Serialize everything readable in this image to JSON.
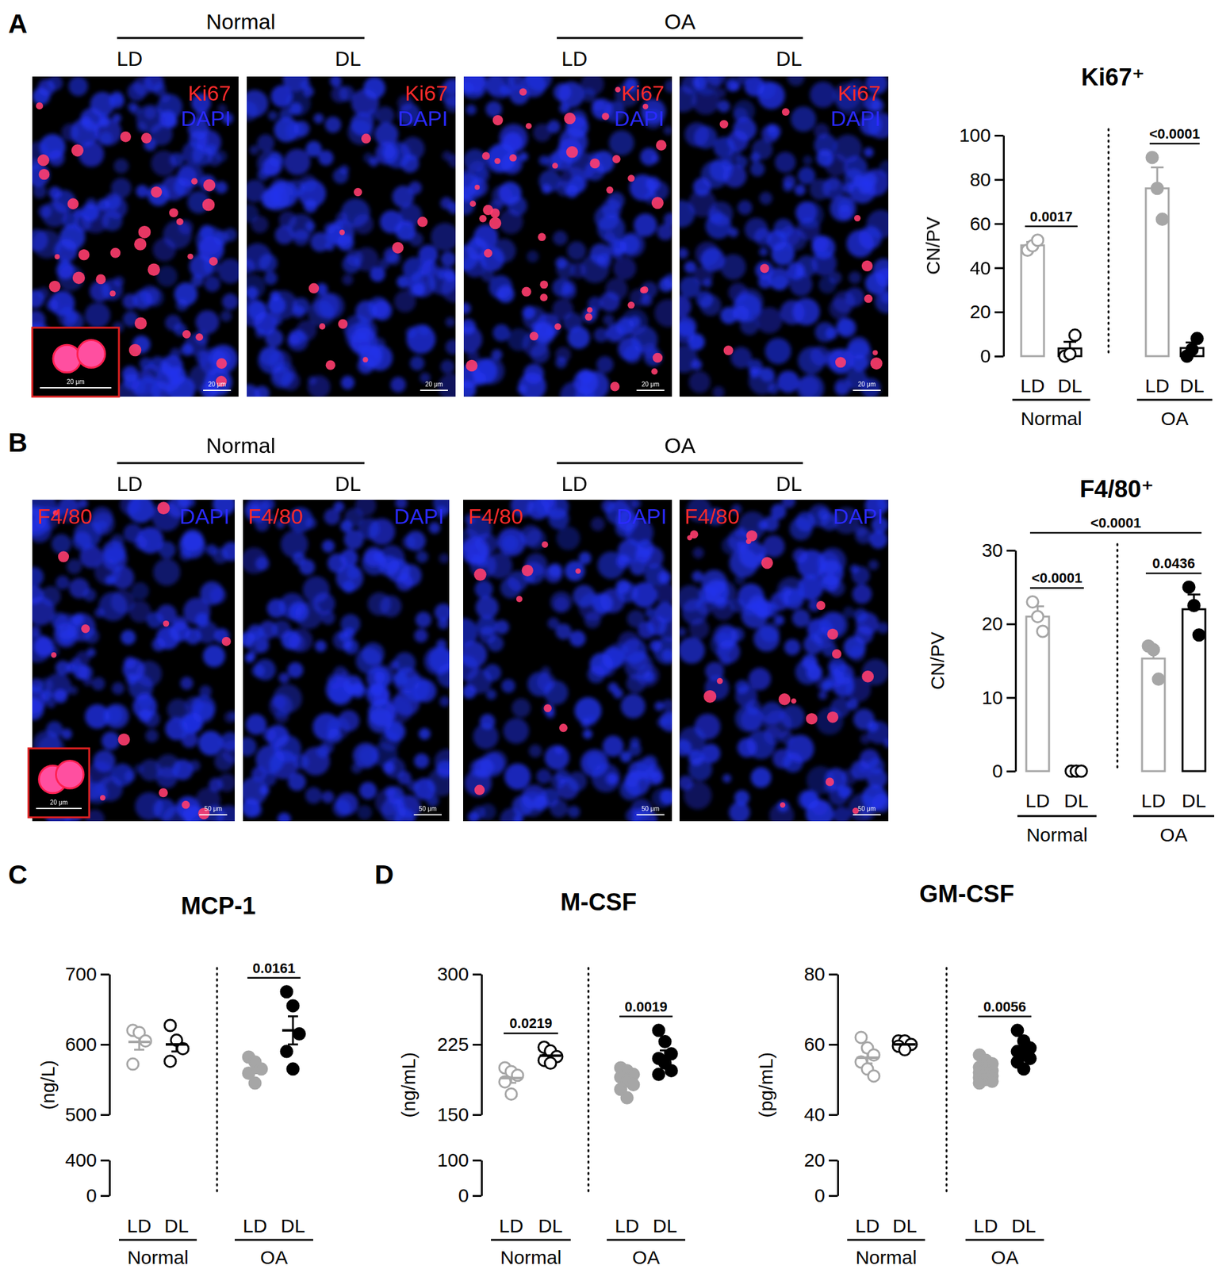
{
  "figure": {
    "panels": [
      {
        "letter": "A",
        "groups": [
          {
            "name": "Normal",
            "columns": [
              "LD",
              "DL"
            ]
          },
          {
            "name": "OA",
            "columns": [
              "LD",
              "DL"
            ]
          }
        ],
        "stain": "Ki67",
        "counterstain": "DAPI",
        "scale_bar": "20 μm",
        "inset_scale_bar": "20 μm"
      },
      {
        "letter": "B",
        "groups": [
          {
            "name": "Normal",
            "columns": [
              "LD",
              "DL"
            ]
          },
          {
            "name": "OA",
            "columns": [
              "LD",
              "DL"
            ]
          }
        ],
        "stain": "F4/80",
        "counterstain": "DAPI",
        "scale_bar": "50 μm",
        "inset_scale_bar": "20 μm"
      },
      {
        "letter": "C"
      },
      {
        "letter": "D"
      }
    ]
  },
  "chart_data": [
    {
      "type": "bar",
      "title": "Ki67⁺",
      "y_label": "CN/PV",
      "categories": [
        "LD",
        "DL"
      ],
      "colors": [
        "#a6a6a6",
        "#000000"
      ],
      "ylim": [
        0,
        100
      ],
      "yticks": [
        0,
        20,
        40,
        60,
        80,
        100
      ],
      "series": [
        {
          "name": "Normal",
          "marker": "open",
          "values": [
            50.2,
            3.5
          ],
          "errors": [
            1.5,
            3
          ],
          "points": [
            [
              48,
              50,
              52.5
            ],
            [
              0,
              1,
              9.5
            ]
          ]
        },
        {
          "name": "OA",
          "marker": "filled",
          "values": [
            76,
            3.7
          ],
          "errors": [
            9.5,
            2.5
          ],
          "points": [
            [
              90,
              76,
              62
            ],
            [
              0,
              3,
              8
            ]
          ]
        }
      ],
      "annotations": [
        {
          "text": "0.0017",
          "from": [
            "Normal",
            "LD"
          ],
          "to": [
            "Normal",
            "DL"
          ]
        },
        {
          "text": "<0.0001",
          "from": [
            "OA",
            "LD"
          ],
          "to": [
            "OA",
            "DL"
          ]
        }
      ]
    },
    {
      "type": "bar",
      "title": "F4/80⁺",
      "y_label": "CN/PV",
      "categories": [
        "LD",
        "DL"
      ],
      "colors": [
        "#a6a6a6",
        "#000000"
      ],
      "ylim": [
        0,
        30
      ],
      "yticks": [
        0,
        10,
        20,
        30
      ],
      "series": [
        {
          "name": "Normal",
          "marker": "open",
          "values": [
            21,
            0
          ],
          "errors": [
            1.4,
            0
          ],
          "points": [
            [
              23,
              21,
              19
            ],
            [
              0,
              0,
              0
            ]
          ]
        },
        {
          "name": "OA",
          "marker": "filled",
          "values": [
            15.3,
            22
          ],
          "errors": [
            1.4,
            2
          ],
          "points": [
            [
              17,
              16.5,
              12.5
            ],
            [
              25,
              22.5,
              18.5
            ]
          ]
        }
      ],
      "annotations": [
        {
          "text": "<0.0001",
          "from": [
            "Normal",
            "LD"
          ],
          "to": [
            "Normal",
            "DL"
          ]
        },
        {
          "text": "0.0436",
          "from": [
            "OA",
            "LD"
          ],
          "to": [
            "OA",
            "DL"
          ]
        },
        {
          "text": "<0.0001",
          "from": [
            "Normal",
            "LD"
          ],
          "to": [
            "OA",
            "DL"
          ]
        }
      ]
    },
    {
      "type": "dot",
      "title": "MCP-1",
      "y_label": "(ng/L)",
      "categories": [
        "LD",
        "DL"
      ],
      "colors": [
        "#a6a6a6",
        "#000000"
      ],
      "ylim": [
        0,
        700
      ],
      "y_break": [
        400,
        500
      ],
      "yticks": [
        0,
        400,
        500,
        600,
        700
      ],
      "series": [
        {
          "name": "Normal",
          "marker": "open",
          "values": [
            603.5,
            600
          ],
          "errors": [
            11,
            10
          ],
          "points": [
            [
              620,
              617,
              605,
              572
            ],
            [
              627,
              606,
              594,
              576
            ]
          ]
        },
        {
          "name": "OA",
          "marker": "filled",
          "values": [
            565,
            620
          ],
          "errors": [
            6,
            20
          ],
          "points": [
            [
              582,
              575,
              565,
              559,
              545
            ],
            [
              675,
              655,
              615,
              590,
              565
            ]
          ]
        }
      ],
      "annotations": [
        {
          "text": "0.0161",
          "from": [
            "OA",
            "LD"
          ],
          "to": [
            "OA",
            "DL"
          ]
        }
      ]
    },
    {
      "type": "dot",
      "title": "M-CSF",
      "y_label": "(ng/mL)",
      "categories": [
        "LD",
        "DL"
      ],
      "colors": [
        "#a6a6a6",
        "#000000"
      ],
      "ylim": [
        0,
        300
      ],
      "y_break": [
        100,
        150
      ],
      "yticks": [
        0,
        100,
        150,
        225,
        300
      ],
      "series": [
        {
          "name": "Normal",
          "marker": "open",
          "values": [
            189,
            213
          ],
          "errors": [
            5,
            3
          ],
          "points": [
            [
              200,
              196,
              192,
              185,
              172
            ],
            [
              222,
              218,
              212,
              208,
              205
            ]
          ]
        },
        {
          "name": "OA",
          "marker": "filled",
          "values": [
            186.6,
            212.6
          ],
          "errors": [
            4,
            6
          ],
          "points": [
            [
              200,
              197,
              193,
              190,
              186,
              182,
              177,
              168
            ],
            [
              240,
              228,
              215,
              210,
              205,
              197,
              193
            ]
          ]
        }
      ],
      "annotations": [
        {
          "text": "0.0219",
          "from": [
            "Normal",
            "LD"
          ],
          "to": [
            "Normal",
            "DL"
          ]
        },
        {
          "text": "0.0019",
          "from": [
            "OA",
            "LD"
          ],
          "to": [
            "OA",
            "DL"
          ]
        }
      ]
    },
    {
      "type": "dot",
      "title": "GM-CSF",
      "y_label": "(pg/mL)",
      "categories": [
        "LD",
        "DL"
      ],
      "colors": [
        "#a6a6a6",
        "#000000"
      ],
      "ylim": [
        0,
        80
      ],
      "y_break": [
        20,
        40
      ],
      "yticks": [
        0,
        20,
        40,
        60,
        80
      ],
      "series": [
        {
          "name": "Normal",
          "marker": "open",
          "values": [
            56.2,
            60
          ],
          "errors": [
            1.6,
            0.5
          ],
          "points": [
            [
              62,
              59,
              57,
              55,
              53,
              51
            ],
            [
              61,
              61,
              60,
              59.5,
              58.5
            ]
          ]
        },
        {
          "name": "OA",
          "marker": "filled",
          "values": [
            52.3,
            57.9
          ],
          "errors": [
            0.7,
            1.2
          ],
          "points": [
            [
              57,
              55.5,
              54.5,
              53.5,
              53,
              52.5,
              52,
              51.5,
              51,
              50.5,
              50,
              49.5,
              49
            ],
            [
              64,
              61,
              59,
              58,
              57,
              56,
              55,
              53
            ]
          ]
        }
      ],
      "annotations": [
        {
          "text": "0.0056",
          "from": [
            "OA",
            "LD"
          ],
          "to": [
            "OA",
            "DL"
          ]
        }
      ]
    }
  ]
}
